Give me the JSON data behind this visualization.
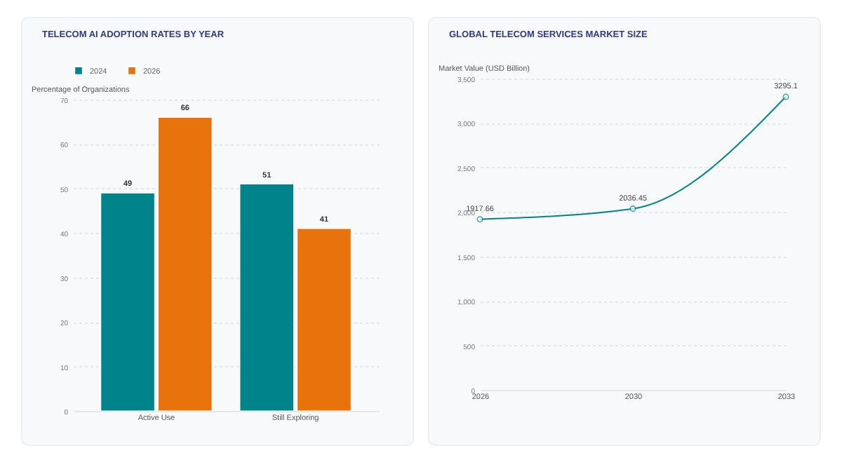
{
  "chart_data": [
    {
      "type": "bar",
      "title": "TELECOM AI ADOPTION RATES BY YEAR",
      "ylabel": "Percentage of Organizations",
      "categories": [
        "Active Use",
        "Still Exploring"
      ],
      "series": [
        {
          "name": "2024",
          "color": "#00838a",
          "values": [
            49,
            51
          ]
        },
        {
          "name": "2026",
          "color": "#e8730c",
          "values": [
            66,
            41
          ]
        }
      ],
      "ylim": [
        0,
        70
      ],
      "yticks": [
        0,
        10,
        20,
        30,
        40,
        50,
        60,
        70
      ],
      "grid": "y",
      "legend": "top",
      "data_labels": true
    },
    {
      "type": "line",
      "title": "GLOBAL TELECOM SERVICES MARKET SIZE",
      "ylabel": "Market Value (USD Billion)",
      "categories": [
        "2026",
        "2030",
        "2033"
      ],
      "series": [
        {
          "color": "#00838a",
          "values": [
            1917.66,
            2036.45,
            3295.1
          ]
        }
      ],
      "ylim": [
        0,
        3500
      ],
      "yticks": [
        0,
        {
          "value": 500,
          "label": "500"
        },
        {
          "value": 1000,
          "label": "1,000"
        },
        {
          "value": 1500,
          "label": "1,500"
        },
        {
          "value": 2000,
          "label": "2,000"
        },
        {
          "value": 2500,
          "label": "2,500"
        },
        {
          "value": 3000,
          "label": "3,000"
        },
        {
          "value": 3500,
          "label": "3,500"
        }
      ],
      "grid": "y",
      "marker": "circle",
      "data_labels": true
    }
  ]
}
